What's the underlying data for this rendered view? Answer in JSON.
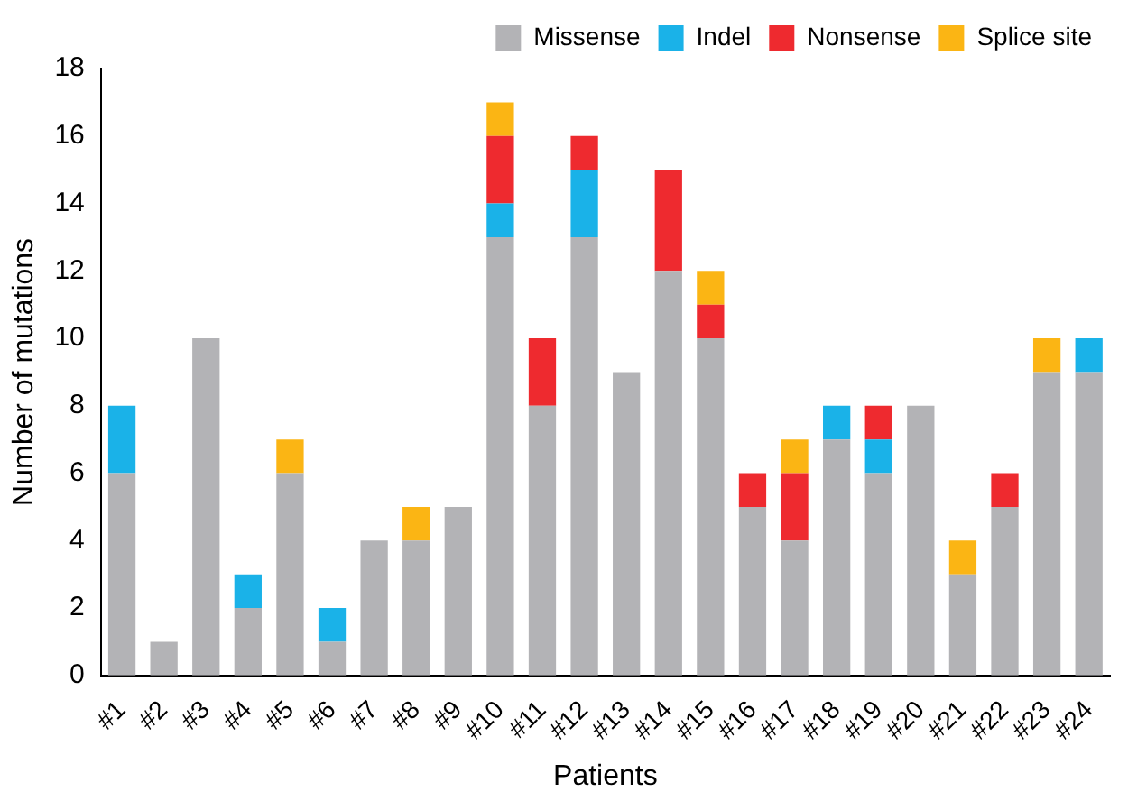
{
  "chart_data": {
    "type": "bar",
    "stacked": true,
    "xlabel": "Patients",
    "ylabel": "Number of mutations",
    "categories": [
      "#1",
      "#2",
      "#3",
      "#4",
      "#5",
      "#6",
      "#7",
      "#8",
      "#9",
      "#10",
      "#11",
      "#12",
      "#13",
      "#14",
      "#15",
      "#16",
      "#17",
      "#18",
      "#19",
      "#20",
      "#21",
      "#22",
      "#23",
      "#24"
    ],
    "series": [
      {
        "name": "Missense",
        "color": "#b3b3b6",
        "values": [
          6,
          1,
          10,
          2,
          6,
          1,
          4,
          4,
          5,
          13,
          8,
          13,
          9,
          12,
          10,
          5,
          4,
          7,
          6,
          8,
          3,
          5,
          9,
          9
        ]
      },
      {
        "name": "Indel",
        "color": "#1ab2e8",
        "values": [
          2,
          0,
          0,
          1,
          0,
          1,
          0,
          0,
          0,
          1,
          0,
          2,
          0,
          0,
          0,
          0,
          0,
          1,
          1,
          0,
          0,
          0,
          0,
          1
        ]
      },
      {
        "name": "Nonsense",
        "color": "#ee2a2f",
        "values": [
          0,
          0,
          0,
          0,
          0,
          0,
          0,
          0,
          0,
          2,
          2,
          1,
          0,
          3,
          1,
          1,
          2,
          0,
          1,
          0,
          0,
          1,
          0,
          0
        ]
      },
      {
        "name": "Splice site",
        "color": "#fbb514",
        "values": [
          0,
          0,
          0,
          0,
          1,
          0,
          0,
          1,
          0,
          1,
          0,
          0,
          0,
          0,
          1,
          0,
          1,
          0,
          0,
          0,
          1,
          0,
          1,
          0
        ]
      }
    ],
    "ylim": [
      0,
      18
    ],
    "yticks": [
      0,
      2,
      4,
      6,
      8,
      10,
      12,
      14,
      16,
      18
    ],
    "grid": false,
    "legend": "top right"
  }
}
